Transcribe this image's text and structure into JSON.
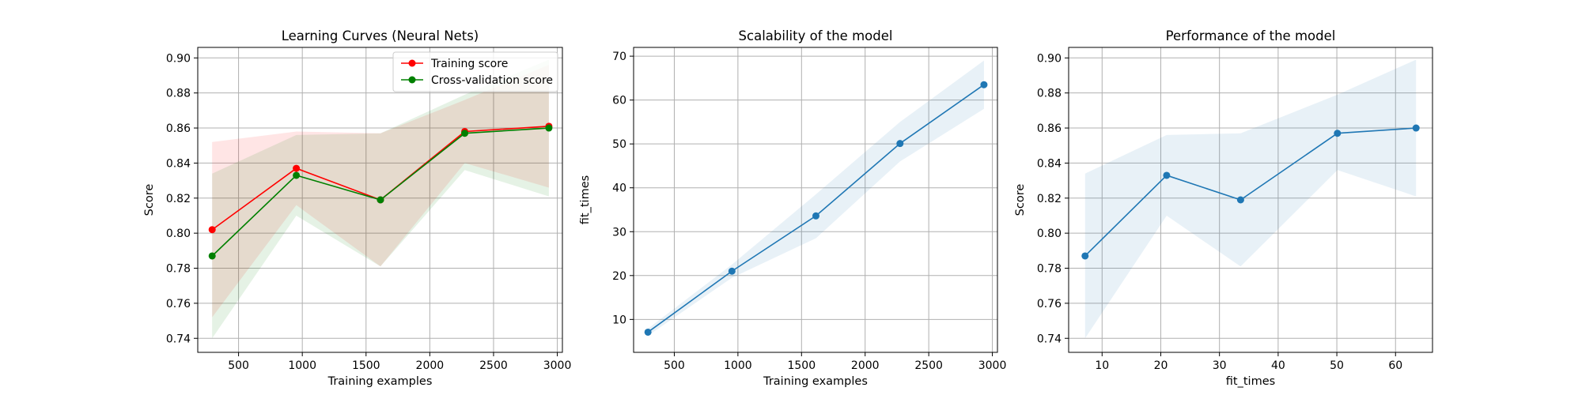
{
  "chart_data": [
    {
      "type": "line",
      "title": "Learning Curves (Neural Nets)",
      "xlabel": "Training examples",
      "ylabel": "Score",
      "xlim": [
        180,
        3040
      ],
      "ylim": [
        0.732,
        0.906
      ],
      "xticks": [
        500,
        1000,
        1500,
        2000,
        2500,
        3000
      ],
      "yticks": [
        0.74,
        0.76,
        0.78,
        0.8,
        0.82,
        0.84,
        0.86,
        0.88,
        0.9
      ],
      "ytick_labels": [
        "0.74",
        "0.76",
        "0.78",
        "0.80",
        "0.82",
        "0.84",
        "0.86",
        "0.88",
        "0.90"
      ],
      "grid": true,
      "legend_position": "top-right",
      "x": [
        293,
        953,
        1613,
        2274,
        2934
      ],
      "series": [
        {
          "name": "Training score",
          "color": "#ff0000",
          "values": [
            0.802,
            0.837,
            0.819,
            0.858,
            0.861
          ],
          "lower": [
            0.752,
            0.816,
            0.781,
            0.84,
            0.826
          ],
          "upper": [
            0.852,
            0.858,
            0.857,
            0.876,
            0.896
          ]
        },
        {
          "name": "Cross-validation score",
          "color": "#008000",
          "values": [
            0.787,
            0.833,
            0.819,
            0.857,
            0.86
          ],
          "lower": [
            0.74,
            0.81,
            0.781,
            0.836,
            0.821
          ],
          "upper": [
            0.834,
            0.856,
            0.857,
            0.879,
            0.899
          ]
        }
      ]
    },
    {
      "type": "line",
      "title": "Scalability of the model",
      "xlabel": "Training examples",
      "ylabel": "fit_times",
      "xlim": [
        180,
        3040
      ],
      "ylim": [
        2.5,
        72
      ],
      "xticks": [
        500,
        1000,
        1500,
        2000,
        2500,
        3000
      ],
      "yticks": [
        10,
        20,
        30,
        40,
        50,
        60,
        70
      ],
      "grid": true,
      "x": [
        293,
        953,
        1613,
        2274,
        2934
      ],
      "series": [
        {
          "color": "#1f77b4",
          "values": [
            7.1,
            21.0,
            33.6,
            50.1,
            63.5
          ],
          "lower": [
            6.3,
            19.5,
            28.5,
            46.0,
            58.0
          ],
          "upper": [
            7.9,
            22.5,
            38.5,
            55.0,
            69.0
          ]
        }
      ]
    },
    {
      "type": "line",
      "title": "Performance of the model",
      "xlabel": "fit_times",
      "ylabel": "Score",
      "xlim": [
        4.3,
        66.3
      ],
      "ylim": [
        0.732,
        0.906
      ],
      "xticks": [
        10,
        20,
        30,
        40,
        50,
        60
      ],
      "yticks": [
        0.74,
        0.76,
        0.78,
        0.8,
        0.82,
        0.84,
        0.86,
        0.88,
        0.9
      ],
      "ytick_labels": [
        "0.74",
        "0.76",
        "0.78",
        "0.80",
        "0.82",
        "0.84",
        "0.86",
        "0.88",
        "0.90"
      ],
      "grid": true,
      "x": [
        7.1,
        21.0,
        33.6,
        50.1,
        63.5
      ],
      "series": [
        {
          "color": "#1f77b4",
          "values": [
            0.787,
            0.833,
            0.819,
            0.857,
            0.86
          ],
          "lower": [
            0.74,
            0.81,
            0.781,
            0.836,
            0.821
          ],
          "upper": [
            0.834,
            0.856,
            0.857,
            0.879,
            0.899
          ]
        }
      ]
    }
  ]
}
